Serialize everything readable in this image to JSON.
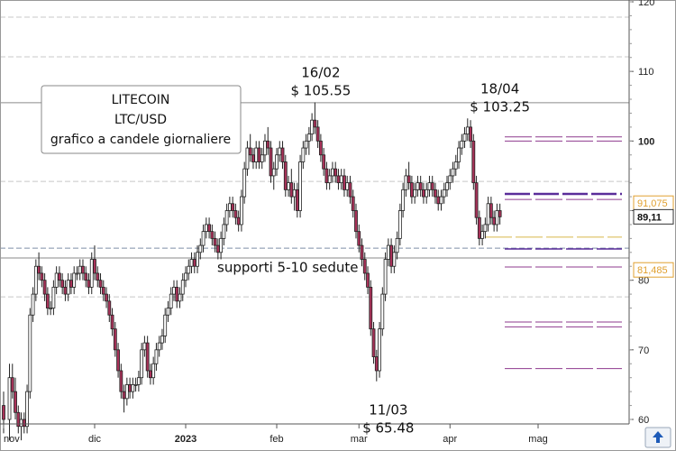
{
  "chart_data": {
    "type": "candlestick",
    "title": [
      "LITECOIN",
      "LTC/USD",
      "grafico a candele giornaliere"
    ],
    "xlabel": "",
    "ylabel": "",
    "ylim": [
      60,
      120
    ],
    "grid": false,
    "y_ticks": [
      60,
      70,
      80,
      90,
      100,
      110,
      120
    ],
    "y_tick_labels": [
      "60",
      "70",
      "80",
      "90",
      "100",
      "110",
      "120"
    ],
    "x_ticks": [
      {
        "label": "nov",
        "day": -1
      },
      {
        "label": "dic",
        "day": 30
      },
      {
        "label": "2023",
        "day": 61
      },
      {
        "label": "feb",
        "day": 92
      },
      {
        "label": "mar",
        "day": 120
      },
      {
        "label": "apr",
        "day": 151
      },
      {
        "label": "mag",
        "day": 181
      }
    ],
    "horizontal_levels": [
      {
        "value": 105.5,
        "color": "#8a8a8a",
        "style": "solid"
      },
      {
        "value": 83.2,
        "color": "#8a8a8a",
        "style": "solid"
      },
      {
        "value": 84.6,
        "color": "#7f8fa6",
        "style": "dashed"
      },
      {
        "value": 117.8,
        "color": "#c8c8c8",
        "style": "dashed"
      },
      {
        "value": 112.1,
        "color": "#c8c8c8",
        "style": "dashed"
      },
      {
        "value": 94.2,
        "color": "#c8c8c8",
        "style": "dashed"
      },
      {
        "value": 77.6,
        "color": "#c8c8c8",
        "style": "dashed"
      }
    ],
    "projection_levels": [
      {
        "value": 100.6,
        "color": "#8e3a8e",
        "width": 1
      },
      {
        "value": 100.0,
        "color": "#8e3a8e",
        "width": 1
      },
      {
        "value": 92.4,
        "color": "#5a2d9a",
        "width": 2.5
      },
      {
        "value": 91.6,
        "color": "#8e3a8e",
        "width": 1
      },
      {
        "value": 86.2,
        "color": "#d8b84a",
        "width": 1
      },
      {
        "value": 84.5,
        "color": "#5a2d9a",
        "width": 1.5
      },
      {
        "value": 81.9,
        "color": "#8e3a8e",
        "width": 1
      },
      {
        "value": 74.0,
        "color": "#8e3a8e",
        "width": 1
      },
      {
        "value": 73.3,
        "color": "#8e3a8e",
        "width": 1
      },
      {
        "value": 67.3,
        "color": "#8e3a8e",
        "width": 1
      }
    ],
    "price_badges": [
      {
        "value": 91.075,
        "label": "91,075",
        "color": "#e0a030"
      },
      {
        "value": 89.11,
        "label": "89,11",
        "color": "#333333"
      },
      {
        "value": 81.485,
        "label": "81,485",
        "color": "#e0a030"
      }
    ],
    "annotations": [
      {
        "text": [
          "16/02",
          "$ 105.55"
        ],
        "day": 107,
        "value": 105.55,
        "position": "above"
      },
      {
        "text": [
          "18/04",
          "$ 103.25"
        ],
        "day": 168,
        "value": 103.25,
        "position": "above"
      },
      {
        "text": [
          "11/03",
          "$ 65.48"
        ],
        "day": 130,
        "value": 65.48,
        "position": "below"
      },
      {
        "text": [
          "supporti 5-10 sedute"
        ],
        "day": 85,
        "value": 80.9,
        "position": "right"
      }
    ],
    "candles_ohlc": [
      [
        -1,
        62,
        64,
        58,
        60
      ],
      [
        1,
        60,
        68,
        57,
        66
      ],
      [
        2,
        66,
        68,
        63,
        64
      ],
      [
        3,
        64,
        66,
        60,
        61
      ],
      [
        4,
        61,
        62,
        58,
        59
      ],
      [
        5,
        59,
        61,
        57,
        60
      ],
      [
        6,
        60,
        61,
        58,
        59
      ],
      [
        7,
        59,
        65,
        58,
        64
      ],
      [
        8,
        64,
        76,
        63,
        75
      ],
      [
        9,
        75,
        79,
        74,
        78
      ],
      [
        10,
        78,
        83,
        77,
        82
      ],
      [
        11,
        82,
        84,
        80,
        81
      ],
      [
        12,
        81,
        82,
        79,
        80
      ],
      [
        13,
        80,
        81,
        77,
        78
      ],
      [
        14,
        78,
        79,
        75,
        76
      ],
      [
        15,
        76,
        77,
        75,
        76
      ],
      [
        16,
        76,
        80,
        75,
        79
      ],
      [
        17,
        79,
        82,
        78,
        81
      ],
      [
        18,
        81,
        82,
        79,
        80
      ],
      [
        19,
        80,
        81,
        78,
        79
      ],
      [
        20,
        79,
        80,
        77,
        78
      ],
      [
        21,
        78,
        81,
        77,
        80
      ],
      [
        22,
        80,
        81,
        78,
        79
      ],
      [
        23,
        79,
        82,
        78,
        81
      ],
      [
        24,
        81,
        82,
        80,
        81
      ],
      [
        25,
        81,
        83,
        80,
        82
      ],
      [
        26,
        82,
        83,
        80,
        81
      ],
      [
        27,
        81,
        82,
        79,
        80
      ],
      [
        28,
        80,
        81,
        78,
        79
      ],
      [
        29,
        79,
        84,
        78,
        83
      ],
      [
        30,
        83,
        85,
        80,
        81
      ],
      [
        31,
        81,
        82,
        79,
        80
      ],
      [
        32,
        80,
        81,
        78,
        79
      ],
      [
        33,
        79,
        80,
        77,
        78
      ],
      [
        34,
        78,
        79,
        76,
        77
      ],
      [
        35,
        77,
        78,
        74,
        75
      ],
      [
        36,
        75,
        76,
        72,
        73
      ],
      [
        37,
        73,
        74,
        69,
        70
      ],
      [
        38,
        70,
        71,
        66,
        67
      ],
      [
        39,
        67,
        68,
        63,
        64
      ],
      [
        40,
        64,
        65,
        61,
        63
      ],
      [
        41,
        63,
        66,
        62,
        65
      ],
      [
        42,
        65,
        66,
        63,
        64
      ],
      [
        43,
        64,
        66,
        63,
        65
      ],
      [
        44,
        65,
        66,
        64,
        65
      ],
      [
        45,
        65,
        67,
        64,
        66
      ],
      [
        46,
        66,
        71,
        65,
        70
      ],
      [
        47,
        70,
        72,
        69,
        71
      ],
      [
        48,
        71,
        72,
        66,
        67
      ],
      [
        49,
        67,
        68,
        65,
        66
      ],
      [
        50,
        66,
        69,
        65,
        68
      ],
      [
        51,
        68,
        71,
        67,
        70
      ],
      [
        52,
        70,
        72,
        69,
        71
      ],
      [
        53,
        71,
        73,
        70,
        72
      ],
      [
        54,
        72,
        76,
        71,
        75
      ],
      [
        55,
        75,
        77,
        74,
        76
      ],
      [
        56,
        76,
        79,
        75,
        78
      ],
      [
        57,
        78,
        80,
        77,
        79
      ],
      [
        58,
        79,
        80,
        76,
        77
      ],
      [
        59,
        77,
        79,
        76,
        78
      ],
      [
        60,
        78,
        81,
        77,
        80
      ],
      [
        61,
        80,
        82,
        79,
        81
      ],
      [
        62,
        81,
        83,
        80,
        82
      ],
      [
        63,
        82,
        84,
        81,
        83
      ],
      [
        64,
        83,
        84,
        81,
        82
      ],
      [
        65,
        82,
        85,
        81,
        84
      ],
      [
        66,
        84,
        86,
        83,
        85
      ],
      [
        67,
        85,
        88,
        84,
        87
      ],
      [
        68,
        87,
        89,
        86,
        88
      ],
      [
        69,
        88,
        89,
        86,
        87
      ],
      [
        70,
        87,
        88,
        85,
        86
      ],
      [
        71,
        86,
        87,
        84,
        85
      ],
      [
        72,
        85,
        86,
        83,
        84
      ],
      [
        73,
        84,
        87,
        83,
        86
      ],
      [
        74,
        86,
        89,
        85,
        88
      ],
      [
        75,
        88,
        91,
        87,
        90
      ],
      [
        76,
        90,
        92,
        89,
        91
      ],
      [
        77,
        91,
        92,
        89,
        90
      ],
      [
        78,
        90,
        91,
        88,
        89
      ],
      [
        79,
        89,
        90,
        87,
        88
      ],
      [
        80,
        88,
        93,
        87,
        92
      ],
      [
        81,
        92,
        97,
        91,
        96
      ],
      [
        82,
        96,
        100,
        95,
        99
      ],
      [
        83,
        99,
        101,
        97,
        98
      ],
      [
        84,
        98,
        99,
        96,
        97
      ],
      [
        85,
        97,
        100,
        96,
        99
      ],
      [
        86,
        99,
        100,
        96,
        97
      ],
      [
        87,
        97,
        99,
        96,
        98
      ],
      [
        88,
        98,
        101,
        97,
        100
      ],
      [
        89,
        100,
        102,
        98,
        99
      ],
      [
        90,
        99,
        100,
        94,
        95
      ],
      [
        91,
        95,
        97,
        93,
        96
      ],
      [
        92,
        96,
        99,
        95,
        98
      ],
      [
        93,
        98,
        100,
        97,
        99
      ],
      [
        94,
        99,
        100,
        96,
        97
      ],
      [
        95,
        97,
        98,
        92,
        93
      ],
      [
        96,
        93,
        95,
        92,
        94
      ],
      [
        97,
        94,
        96,
        91,
        92
      ],
      [
        98,
        92,
        94,
        90,
        93
      ],
      [
        99,
        93,
        94,
        89,
        90
      ],
      [
        100,
        90,
        98,
        89,
        97
      ],
      [
        101,
        97,
        100,
        96,
        99
      ],
      [
        102,
        99,
        101,
        98,
        100
      ],
      [
        103,
        100,
        102,
        98,
        101
      ],
      [
        104,
        101,
        104,
        100,
        103
      ],
      [
        105,
        103,
        105.55,
        101,
        102
      ],
      [
        106,
        102,
        103,
        99,
        100
      ],
      [
        107,
        100,
        101,
        97,
        98
      ],
      [
        108,
        98,
        99,
        95,
        96
      ],
      [
        109,
        96,
        97,
        93,
        94
      ],
      [
        110,
        94,
        96,
        93,
        95
      ],
      [
        111,
        95,
        97,
        94,
        96
      ],
      [
        112,
        96,
        97,
        94,
        95
      ],
      [
        113,
        95,
        96,
        93,
        94
      ],
      [
        114,
        94,
        96,
        93,
        95
      ],
      [
        115,
        95,
        96,
        92,
        93
      ],
      [
        116,
        93,
        95,
        92,
        94
      ],
      [
        117,
        94,
        95,
        91,
        92
      ],
      [
        118,
        92,
        93,
        89,
        90
      ],
      [
        119,
        90,
        91,
        86,
        87
      ],
      [
        120,
        87,
        88,
        84,
        85
      ],
      [
        121,
        85,
        86,
        82,
        83
      ],
      [
        122,
        83,
        84,
        80,
        81
      ],
      [
        123,
        81,
        82,
        78,
        79
      ],
      [
        124,
        79,
        80,
        72,
        73
      ],
      [
        125,
        73,
        74,
        68,
        69
      ],
      [
        126,
        69,
        70,
        65.48,
        67
      ],
      [
        127,
        67,
        74,
        66,
        73
      ],
      [
        128,
        73,
        79,
        72,
        78
      ],
      [
        129,
        78,
        84,
        77,
        83
      ],
      [
        130,
        83,
        86,
        82,
        85
      ],
      [
        131,
        85,
        86,
        81,
        82
      ],
      [
        132,
        82,
        85,
        81,
        84
      ],
      [
        133,
        84,
        87,
        83,
        86
      ],
      [
        134,
        86,
        91,
        85,
        90
      ],
      [
        135,
        90,
        94,
        89,
        93
      ],
      [
        136,
        93,
        96,
        92,
        95
      ],
      [
        137,
        95,
        97,
        93,
        94
      ],
      [
        138,
        94,
        95,
        91,
        92
      ],
      [
        139,
        92,
        94,
        91,
        93
      ],
      [
        140,
        93,
        95,
        92,
        94
      ],
      [
        141,
        94,
        95,
        92,
        93
      ],
      [
        142,
        93,
        94,
        91,
        92
      ],
      [
        143,
        92,
        94,
        91,
        93
      ],
      [
        144,
        93,
        95,
        92,
        94
      ],
      [
        145,
        94,
        95,
        92,
        93
      ],
      [
        146,
        93,
        94,
        91,
        92
      ],
      [
        147,
        92,
        93,
        90,
        91
      ],
      [
        148,
        91,
        93,
        90,
        92
      ],
      [
        149,
        92,
        94,
        91,
        93
      ],
      [
        150,
        93,
        95,
        92,
        94
      ],
      [
        151,
        94,
        96,
        93,
        95
      ],
      [
        152,
        95,
        97,
        94,
        96
      ],
      [
        153,
        96,
        98,
        95,
        97
      ],
      [
        154,
        97,
        100,
        96,
        99
      ],
      [
        155,
        99,
        101,
        98,
        100
      ],
      [
        156,
        100,
        102,
        99,
        101
      ],
      [
        157,
        101,
        103.25,
        100,
        102
      ],
      [
        158,
        102,
        103,
        99,
        100
      ],
      [
        159,
        100,
        101,
        93,
        94
      ],
      [
        160,
        94,
        95,
        88,
        89
      ],
      [
        161,
        89,
        90,
        85,
        86
      ],
      [
        162,
        86,
        88,
        85,
        87
      ],
      [
        163,
        87,
        89,
        86,
        88
      ],
      [
        164,
        88,
        92,
        87,
        91
      ],
      [
        165,
        91,
        92,
        88,
        89
      ],
      [
        166,
        89,
        90,
        87,
        88
      ],
      [
        167,
        88,
        91,
        87,
        90
      ],
      [
        168,
        90,
        91,
        88,
        89.11
      ]
    ]
  },
  "colors": {
    "bull_body": "#ffffff",
    "bear_body": "#a83259",
    "wick": "#222222",
    "axis": "#555555",
    "frame": "#999999"
  }
}
